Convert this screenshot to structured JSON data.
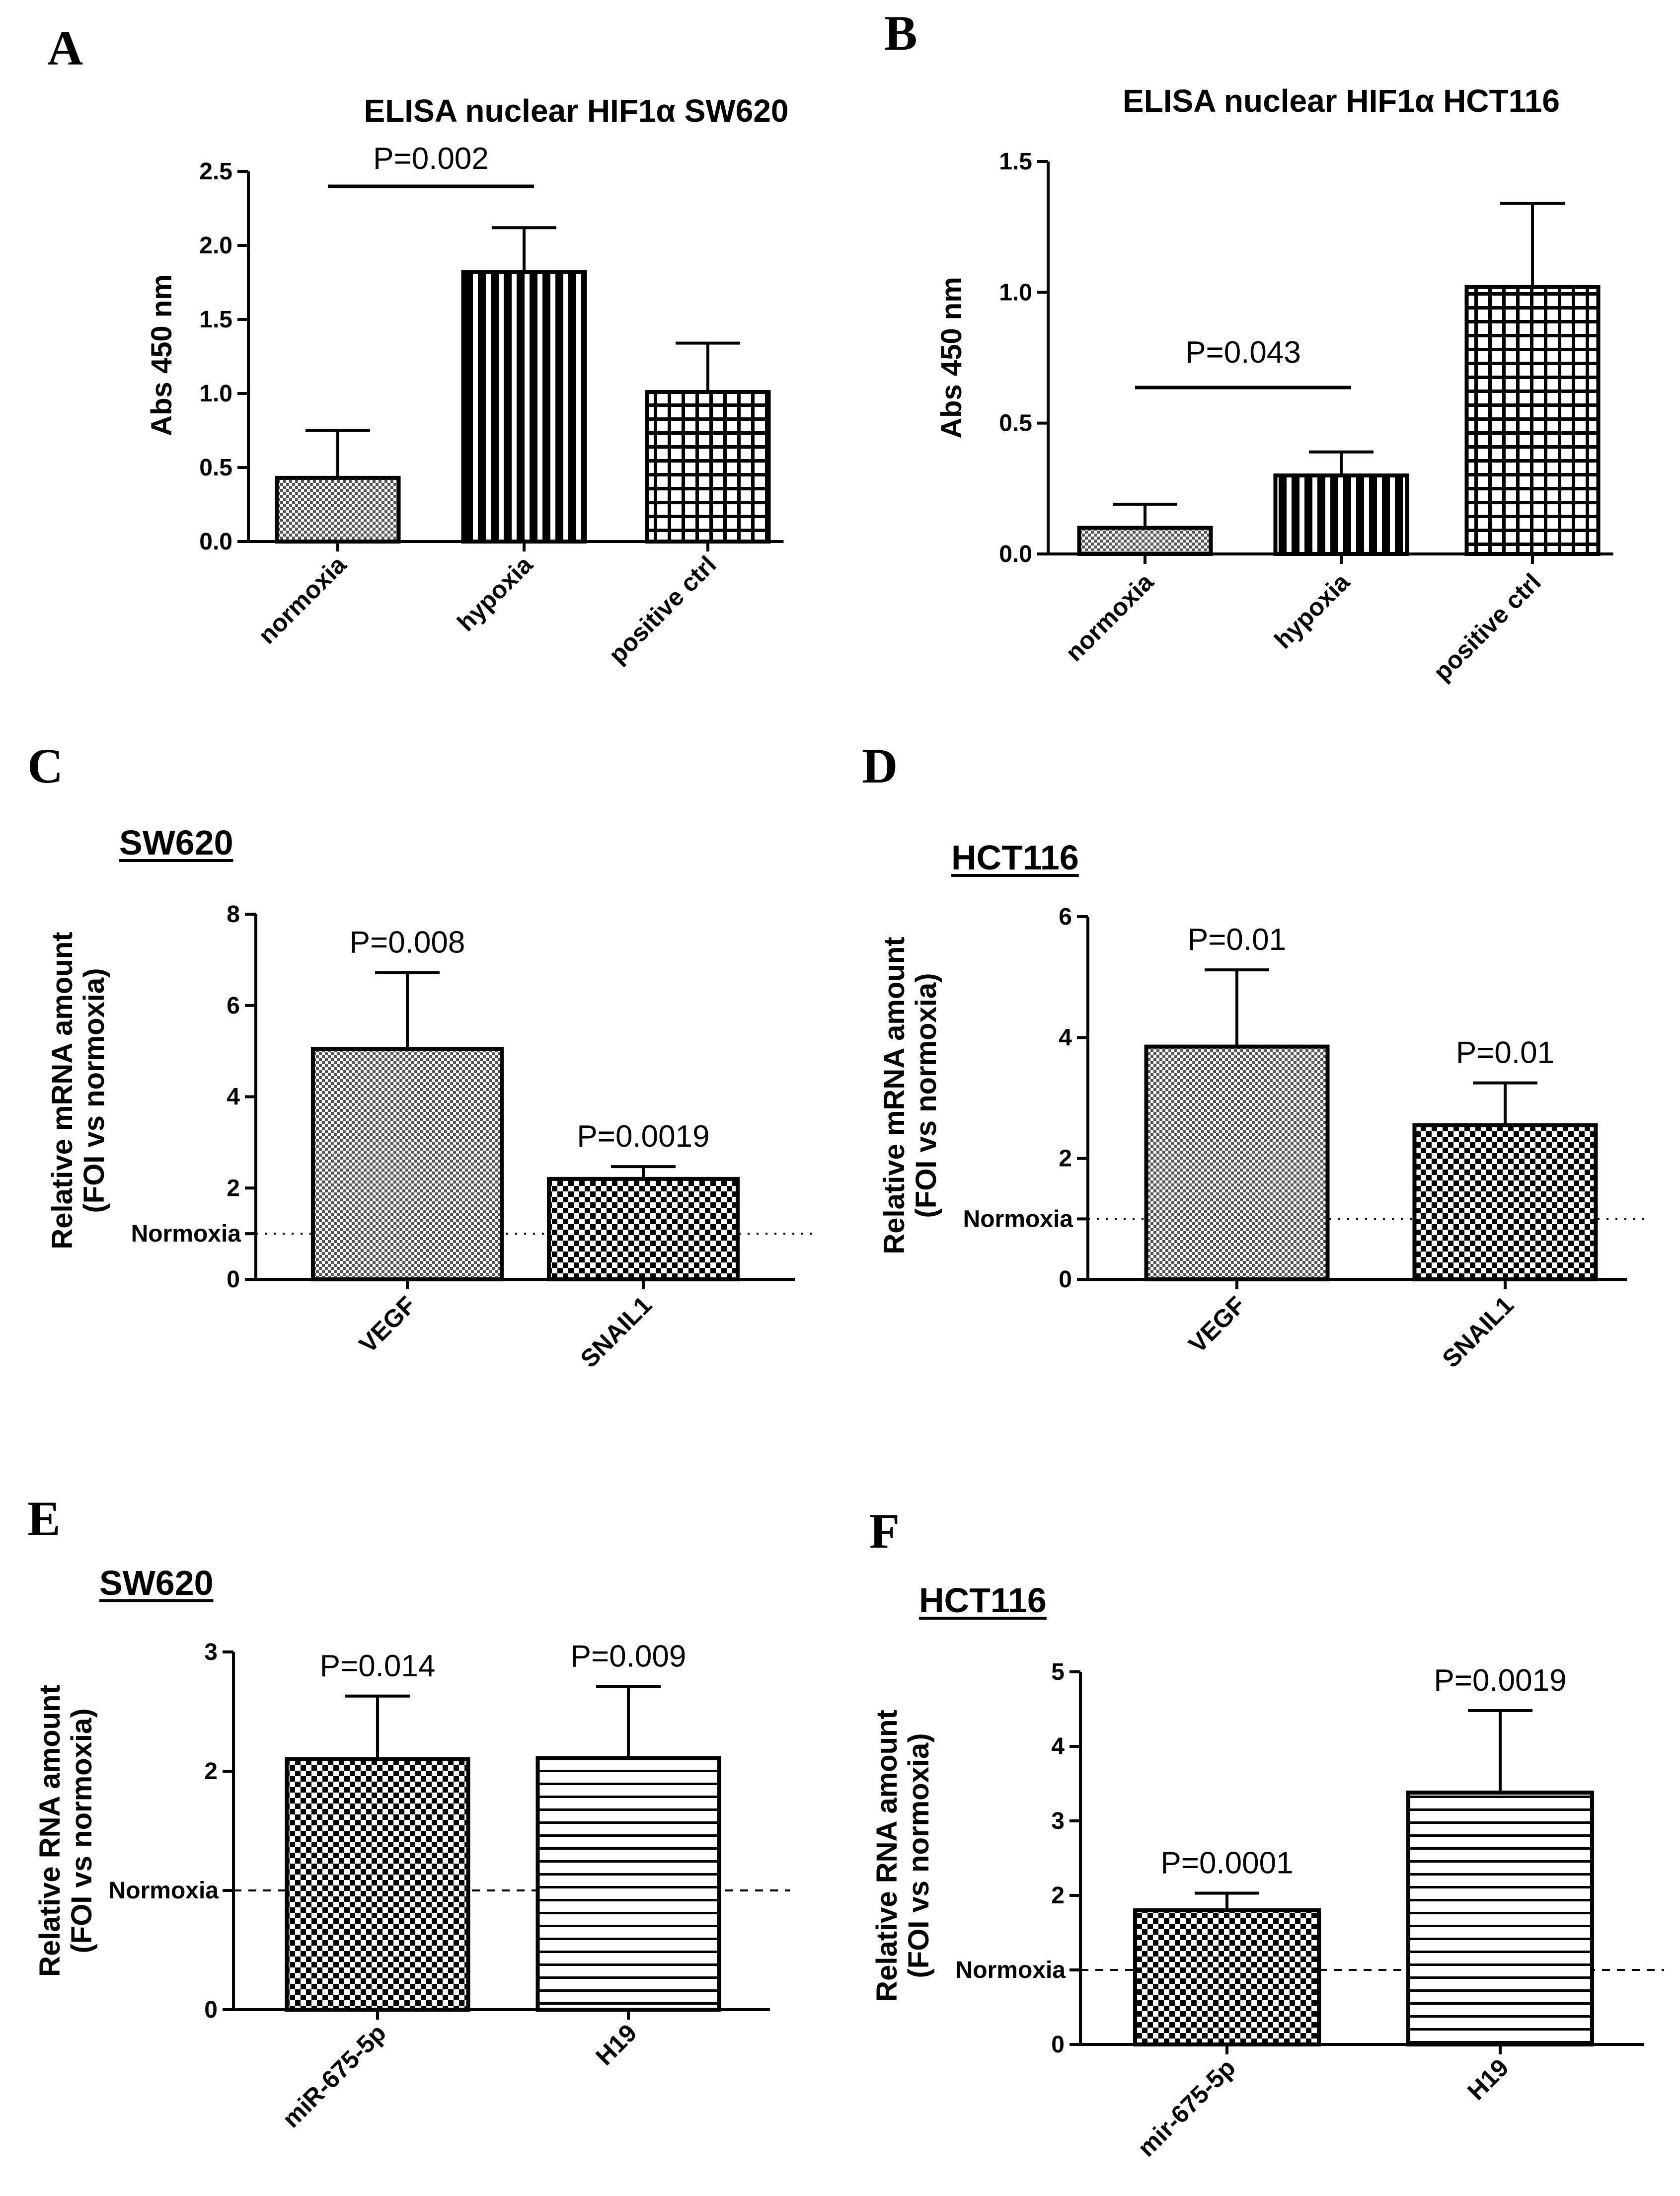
{
  "chart_data": [
    {
      "panel": "A",
      "type": "bar",
      "title": "ELISA nuclear HIF1α SW620",
      "ylabel": "Abs 450 nm",
      "ylim": [
        0,
        2.5
      ],
      "yticks": [
        "0.0",
        "0.5",
        "1.0",
        "1.5",
        "2.0",
        "2.5"
      ],
      "categories": [
        "normoxia",
        "hypoxia",
        "positive ctrl"
      ],
      "values": [
        0.43,
        1.82,
        1.01
      ],
      "errors": [
        0.32,
        0.3,
        0.33
      ],
      "patterns": [
        "dots",
        "vlines",
        "grid"
      ],
      "pvalues": [
        {
          "text": "P=0.002",
          "from": 0,
          "to": 1
        }
      ]
    },
    {
      "panel": "B",
      "type": "bar",
      "title": "ELISA nuclear HIF1α HCT116",
      "ylabel": "Abs 450 nm",
      "ylim": [
        0,
        1.5
      ],
      "yticks": [
        "0.0",
        "0.5",
        "1.0",
        "1.5"
      ],
      "categories": [
        "normoxia",
        "hypoxia",
        "positive ctrl"
      ],
      "values": [
        0.1,
        0.3,
        1.02
      ],
      "errors": [
        0.09,
        0.09,
        0.32
      ],
      "patterns": [
        "dots",
        "vlines",
        "grid"
      ],
      "pvalues": [
        {
          "text": "P=0.043",
          "from": 0,
          "to": 1
        }
      ]
    },
    {
      "panel": "C",
      "type": "bar",
      "title": "SW620",
      "ylabel": [
        "Relative mRNA amount",
        "(FOI vs normoxia)"
      ],
      "ylim": [
        0,
        8
      ],
      "yticks": [
        "0",
        "2",
        "4",
        "6",
        "8"
      ],
      "categories": [
        "VEGF",
        "SNAIL1"
      ],
      "values": [
        5.05,
        2.2
      ],
      "errors": [
        1.67,
        0.27
      ],
      "patterns": [
        "dots",
        "checker"
      ],
      "bar_pvalues": [
        "P=0.008",
        "P=0.0019"
      ],
      "reference": {
        "label": "Normoxia",
        "value": 1,
        "style": "dotted"
      }
    },
    {
      "panel": "D",
      "type": "bar",
      "title": "HCT116",
      "ylabel": [
        "Relative mRNA amount",
        "(FOI vs normoxia)"
      ],
      "ylim": [
        0,
        6
      ],
      "yticks": [
        "0",
        "2",
        "4",
        "6"
      ],
      "categories": [
        "VEGF",
        "SNAIL1"
      ],
      "values": [
        3.85,
        2.55
      ],
      "errors": [
        1.27,
        0.7
      ],
      "patterns": [
        "dots",
        "checker"
      ],
      "bar_pvalues": [
        "P=0.01",
        "P=0.01"
      ],
      "reference": {
        "label": "Normoxia",
        "value": 1,
        "style": "dotted"
      }
    },
    {
      "panel": "E",
      "type": "bar",
      "title": "SW620",
      "ylabel": [
        "Relative RNA amount",
        "(FOI vs normoxia)"
      ],
      "ylim": [
        0,
        3
      ],
      "yticks": [
        "0",
        "2",
        "3"
      ],
      "categories": [
        "miR-675-5p",
        "H19"
      ],
      "values": [
        2.1,
        2.11
      ],
      "errors": [
        0.53,
        0.6
      ],
      "patterns": [
        "checker",
        "hlines"
      ],
      "bar_pvalues": [
        "P=0.014",
        "P=0.009"
      ],
      "reference": {
        "label": "Normoxia",
        "value": 1,
        "style": "dashed"
      }
    },
    {
      "panel": "F",
      "type": "bar",
      "title": "HCT116",
      "ylabel": [
        "Relative RNA amount",
        "(FOI vs normoxia)"
      ],
      "ylim": [
        0,
        5
      ],
      "yticks": [
        "0",
        "2",
        "3",
        "4",
        "5"
      ],
      "categories": [
        "mir-675-5p",
        "H19"
      ],
      "values": [
        1.8,
        3.38
      ],
      "errors": [
        0.23,
        1.1
      ],
      "patterns": [
        "checker",
        "hlines"
      ],
      "bar_pvalues": [
        "P=0.0001",
        "P=0.0019"
      ],
      "reference": {
        "label": "Normoxia",
        "value": 1,
        "style": "dashed"
      }
    }
  ]
}
